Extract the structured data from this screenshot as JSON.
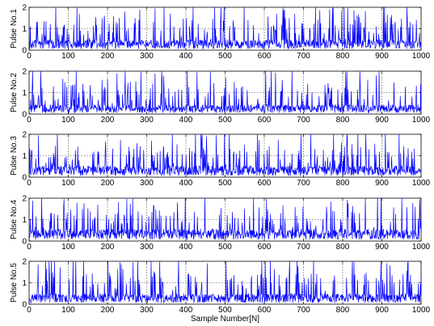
{
  "chart_data": [
    {
      "type": "line",
      "ylabel": "Pulse No.1",
      "xlim": [
        0,
        1000
      ],
      "ylim": [
        0,
        2
      ],
      "xticks": [
        0,
        100,
        200,
        300,
        400,
        500,
        600,
        700,
        800,
        900,
        1000
      ],
      "yticks": [
        0,
        1,
        2
      ],
      "grid": true,
      "color": "#0000ff",
      "series": [
        {
          "n_points": 1000,
          "baseline": 0.28,
          "spikes_reaching_top_near_x": [
            122,
            418,
            497,
            803,
            812,
            906,
            963
          ]
        }
      ]
    },
    {
      "type": "line",
      "ylabel": "Pulse No.2",
      "xlim": [
        0,
        1000
      ],
      "ylim": [
        0,
        2
      ],
      "xticks": [
        0,
        100,
        200,
        300,
        400,
        500,
        600,
        700,
        800,
        900,
        1000
      ],
      "yticks": [
        0,
        1,
        2
      ],
      "grid": true,
      "color": "#0000ff",
      "series": [
        {
          "n_points": 1000,
          "baseline": 0.25,
          "spikes_reaching_top_near_x": [
            603,
            617,
            670
          ]
        }
      ]
    },
    {
      "type": "line",
      "ylabel": "Pulse No.3",
      "xlim": [
        0,
        1000
      ],
      "ylim": [
        0,
        2
      ],
      "xticks": [
        0,
        100,
        200,
        300,
        400,
        500,
        600,
        700,
        800,
        900,
        1000
      ],
      "yticks": [
        0,
        1,
        2
      ],
      "grid": true,
      "color": "#0000ff",
      "series": [
        {
          "n_points": 1000,
          "baseline": 0.3,
          "spikes_reaching_top_near_x": [
            498,
            510,
            582,
            838,
            858
          ]
        }
      ]
    },
    {
      "type": "line",
      "ylabel": "Pulse No.4",
      "xlim": [
        0,
        1000
      ],
      "ylim": [
        0,
        2
      ],
      "xticks": [
        0,
        100,
        200,
        300,
        400,
        500,
        600,
        700,
        800,
        900,
        1000
      ],
      "yticks": [
        0,
        1,
        2
      ],
      "grid": true,
      "color": "#0000ff",
      "series": [
        {
          "n_points": 1000,
          "baseline": 0.32,
          "spikes_reaching_top_near_x": [
            32,
            398,
            572,
            888,
            897
          ]
        }
      ]
    },
    {
      "type": "line",
      "ylabel": "Pulse No.5",
      "xlabel": "Sample Number[N]",
      "xlim": [
        0,
        1000
      ],
      "ylim": [
        0,
        2
      ],
      "xticks": [
        0,
        100,
        200,
        300,
        400,
        500,
        600,
        700,
        800,
        900,
        1000
      ],
      "yticks": [
        0,
        1,
        2
      ],
      "grid": true,
      "color": "#0000ff",
      "series": [
        {
          "n_points": 1000,
          "baseline": 0.28,
          "spikes_reaching_top_near_x": [
            112,
            333,
            381,
            593,
            602,
            615,
            897
          ]
        }
      ]
    }
  ]
}
